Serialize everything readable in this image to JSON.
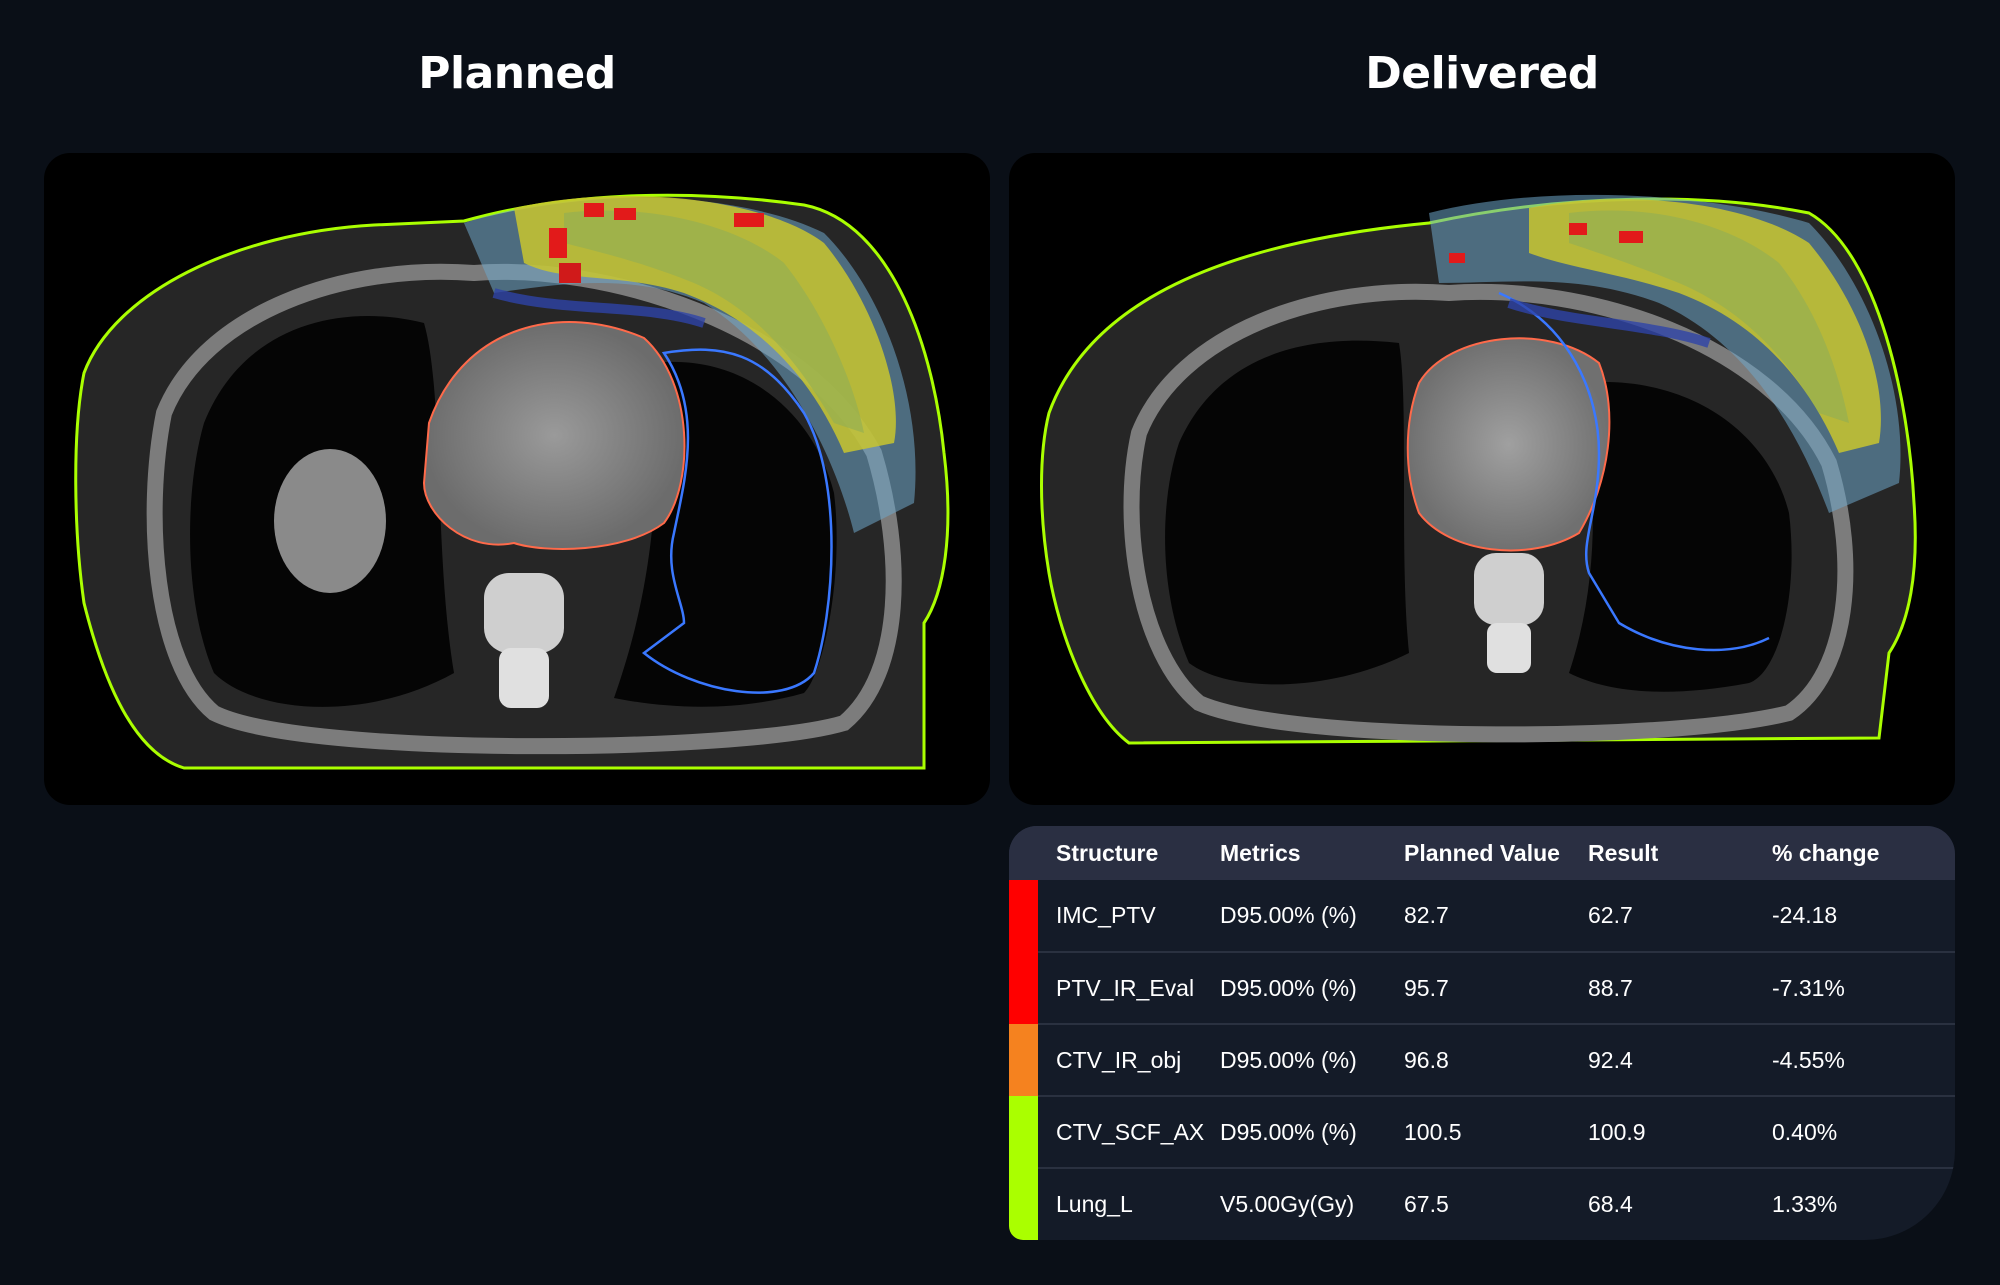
{
  "panels": {
    "planned_title": "Planned",
    "delivered_title": "Delivered"
  },
  "table": {
    "headers": {
      "structure": "Structure",
      "metrics": "Metrics",
      "planned": "Planned Value",
      "result": "Result",
      "change": "% change"
    },
    "rows": [
      {
        "structure": "IMC_PTV",
        "metric": "D95.00% (%)",
        "planned": "82.7",
        "result": "62.7",
        "change": "-24.18",
        "color": "#ff0000"
      },
      {
        "structure": "PTV_IR_Eval",
        "metric": "D95.00% (%)",
        "planned": "95.7",
        "result": "88.7",
        "change": "-7.31%",
        "color": "#ff0000"
      },
      {
        "structure": "CTV_IR_obj",
        "metric": "D95.00% (%)",
        "planned": "96.8",
        "result": "92.4",
        "change": "-4.55%",
        "color": "#f5821f"
      },
      {
        "structure": "CTV_SCF_AX",
        "metric": "D95.00% (%)",
        "planned": "100.5",
        "result": "100.9",
        "change": "0.40%",
        "color": "#aaff00"
      },
      {
        "structure": "Lung_L",
        "metric": "V5.00Gy(Gy)",
        "planned": "67.5",
        "result": "68.4",
        "change": "1.33%",
        "color": "#aaff00"
      }
    ]
  }
}
